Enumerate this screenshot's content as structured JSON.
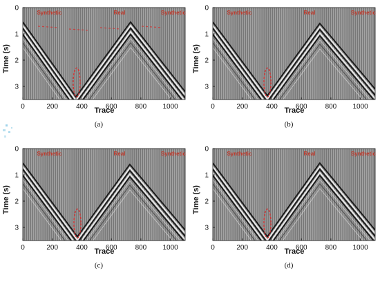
{
  "figure": {
    "x_label": "Trace",
    "y_label": "Time (s)",
    "region_labels": [
      "Synthetic",
      "Real",
      "Synthetic"
    ],
    "x_ticks": [
      "0",
      "200",
      "400",
      "600",
      "800",
      "1000"
    ],
    "y_ticks": [
      "0",
      "1",
      "2",
      "3"
    ],
    "colors": {
      "background": "#8c8c8c",
      "event_dark": "#111111",
      "event_light": "#f2f2f2",
      "annotation": "#d32f2f"
    }
  },
  "panels": [
    {
      "caption": "(a)"
    },
    {
      "caption": "(b)"
    },
    {
      "caption": "(c)"
    },
    {
      "caption": "(d)"
    }
  ],
  "chart_data": [
    {
      "type": "seismic-gather",
      "panel": "(a)",
      "xlabel": "Trace",
      "ylabel": "Time (s)",
      "xlim": [
        0,
        1100
      ],
      "ylim": [
        3.5,
        0
      ],
      "regions": [
        "Synthetic",
        "Real",
        "Synthetic"
      ],
      "events": [
        {
          "x": [
            0,
            360,
            730,
            1100
          ],
          "y": [
            0.55,
            3.4,
            0.55,
            3.2
          ]
        }
      ],
      "annotations": {
        "ellipse_center": [
          365,
          2.85
        ],
        "dashed_red_marks_top": true
      }
    },
    {
      "type": "seismic-gather",
      "panel": "(b)",
      "xlabel": "Trace",
      "ylabel": "Time (s)",
      "xlim": [
        0,
        1100
      ],
      "ylim": [
        3.5,
        0
      ],
      "regions": [
        "Synthetic",
        "Real",
        "Synthetic"
      ],
      "events": [
        {
          "x": [
            0,
            370,
            725,
            1100
          ],
          "y": [
            0.55,
            3.35,
            0.6,
            3.1
          ]
        }
      ],
      "annotations": {
        "ellipse_center": [
          370,
          2.85
        ]
      }
    },
    {
      "type": "seismic-gather",
      "panel": "(c)",
      "xlabel": "Trace",
      "ylabel": "Time (s)",
      "xlim": [
        0,
        1100
      ],
      "ylim": [
        3.5,
        0
      ],
      "regions": [
        "Synthetic",
        "Real",
        "Synthetic"
      ],
      "events": [
        {
          "x": [
            0,
            370,
            725,
            1100
          ],
          "y": [
            0.55,
            3.35,
            0.6,
            3.1
          ]
        }
      ],
      "annotations": {
        "ellipse_center": [
          370,
          2.85
        ]
      }
    },
    {
      "type": "seismic-gather",
      "panel": "(d)",
      "xlabel": "Trace",
      "ylabel": "Time (s)",
      "xlim": [
        0,
        1100
      ],
      "ylim": [
        3.5,
        0
      ],
      "regions": [
        "Synthetic",
        "Real",
        "Synthetic"
      ],
      "events": [
        {
          "x": [
            0,
            370,
            725,
            1100
          ],
          "y": [
            0.55,
            3.35,
            0.55,
            3.1
          ]
        }
      ],
      "annotations": {
        "ellipse_center": [
          370,
          2.85
        ]
      }
    }
  ]
}
